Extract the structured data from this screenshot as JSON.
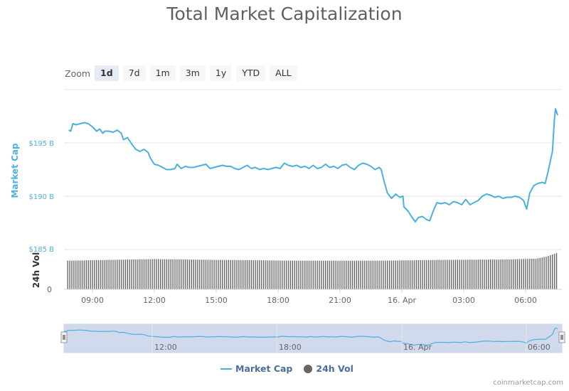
{
  "chart_data": {
    "type": "line",
    "title": "Total Market Capitalization",
    "zoom": {
      "label": "Zoom",
      "buttons": [
        "1d",
        "7d",
        "1m",
        "3m",
        "1y",
        "YTD",
        "ALL"
      ],
      "selected": "1d"
    },
    "y_axis": {
      "label": "Market Cap",
      "ticks": [
        "$185 B",
        "$190 B",
        "$195 B"
      ],
      "ylim": [
        185,
        200
      ]
    },
    "volume_axis": {
      "label": "24h Vol",
      "ticks": [
        "0"
      ]
    },
    "x_ticks": [
      "09:00",
      "12:00",
      "15:00",
      "18:00",
      "21:00",
      "16. Apr",
      "03:00",
      "06:00"
    ],
    "navigator_ticks": [
      "12:00",
      "18:00",
      "16. Apr",
      "06:00"
    ],
    "x_unit": "hours since 09:00",
    "series": [
      {
        "name": "Market Cap",
        "color": "#4cb0de",
        "points": [
          [
            -1.15,
            196.2
          ],
          [
            -1.05,
            196.1
          ],
          [
            -0.95,
            196.8
          ],
          [
            -0.8,
            196.7
          ],
          [
            -0.6,
            196.8
          ],
          [
            -0.4,
            196.9
          ],
          [
            -0.2,
            196.8
          ],
          [
            0.0,
            196.5
          ],
          [
            0.2,
            196.1
          ],
          [
            0.35,
            196.3
          ],
          [
            0.5,
            195.9
          ],
          [
            0.6,
            196.1
          ],
          [
            0.8,
            196.1
          ],
          [
            1.0,
            196.0
          ],
          [
            1.2,
            196.2
          ],
          [
            1.4,
            195.9
          ],
          [
            1.5,
            195.3
          ],
          [
            1.7,
            195.5
          ],
          [
            1.9,
            194.9
          ],
          [
            2.1,
            194.4
          ],
          [
            2.3,
            194.2
          ],
          [
            2.5,
            194.4
          ],
          [
            2.7,
            194.1
          ],
          [
            2.8,
            193.6
          ],
          [
            3.0,
            193.0
          ],
          [
            3.2,
            192.9
          ],
          [
            3.4,
            192.7
          ],
          [
            3.6,
            192.5
          ],
          [
            3.8,
            192.5
          ],
          [
            4.0,
            192.6
          ],
          [
            4.1,
            193.0
          ],
          [
            4.3,
            192.6
          ],
          [
            4.5,
            192.8
          ],
          [
            4.7,
            192.7
          ],
          [
            4.9,
            192.7
          ],
          [
            5.1,
            192.8
          ],
          [
            5.3,
            192.9
          ],
          [
            5.5,
            193.0
          ],
          [
            5.7,
            192.6
          ],
          [
            5.9,
            192.7
          ],
          [
            6.1,
            192.8
          ],
          [
            6.3,
            192.9
          ],
          [
            6.5,
            192.8
          ],
          [
            6.7,
            192.8
          ],
          [
            6.9,
            192.6
          ],
          [
            7.1,
            192.5
          ],
          [
            7.3,
            192.7
          ],
          [
            7.5,
            192.9
          ],
          [
            7.7,
            192.6
          ],
          [
            7.9,
            192.7
          ],
          [
            8.1,
            192.5
          ],
          [
            8.3,
            192.6
          ],
          [
            8.5,
            192.5
          ],
          [
            8.7,
            192.6
          ],
          [
            8.9,
            192.7
          ],
          [
            9.1,
            192.6
          ],
          [
            9.3,
            193.1
          ],
          [
            9.5,
            192.9
          ],
          [
            9.7,
            192.8
          ],
          [
            9.9,
            192.9
          ],
          [
            10.1,
            192.7
          ],
          [
            10.3,
            192.8
          ],
          [
            10.5,
            192.6
          ],
          [
            10.7,
            192.9
          ],
          [
            10.9,
            192.6
          ],
          [
            11.1,
            192.7
          ],
          [
            11.3,
            193.0
          ],
          [
            11.5,
            192.7
          ],
          [
            11.7,
            192.8
          ],
          [
            11.9,
            192.6
          ],
          [
            12.1,
            192.9
          ],
          [
            12.3,
            193.0
          ],
          [
            12.5,
            192.7
          ],
          [
            12.7,
            192.5
          ],
          [
            12.9,
            192.9
          ],
          [
            13.1,
            193.1
          ],
          [
            13.3,
            193.0
          ],
          [
            13.5,
            192.8
          ],
          [
            13.7,
            192.5
          ],
          [
            13.9,
            192.7
          ],
          [
            14.0,
            192.5
          ],
          [
            14.15,
            191.3
          ],
          [
            14.3,
            190.3
          ],
          [
            14.5,
            189.8
          ],
          [
            14.7,
            190.2
          ],
          [
            14.9,
            189.9
          ],
          [
            15.05,
            190.0
          ],
          [
            15.1,
            189.0
          ],
          [
            15.3,
            188.6
          ],
          [
            15.5,
            188.0
          ],
          [
            15.65,
            187.6
          ],
          [
            15.8,
            188.0
          ],
          [
            16.0,
            188.1
          ],
          [
            16.2,
            187.8
          ],
          [
            16.35,
            187.7
          ],
          [
            16.5,
            188.5
          ],
          [
            16.7,
            189.4
          ],
          [
            16.9,
            189.3
          ],
          [
            17.1,
            189.4
          ],
          [
            17.3,
            189.2
          ],
          [
            17.5,
            189.5
          ],
          [
            17.7,
            189.4
          ],
          [
            17.9,
            189.2
          ],
          [
            18.1,
            189.7
          ],
          [
            18.3,
            189.2
          ],
          [
            18.5,
            189.4
          ],
          [
            18.7,
            189.6
          ],
          [
            18.9,
            190.0
          ],
          [
            19.1,
            190.2
          ],
          [
            19.3,
            190.1
          ],
          [
            19.5,
            189.9
          ],
          [
            19.7,
            190.0
          ],
          [
            19.9,
            189.8
          ],
          [
            20.1,
            189.9
          ],
          [
            20.3,
            189.9
          ],
          [
            20.5,
            190.0
          ],
          [
            20.7,
            189.9
          ],
          [
            20.9,
            189.6
          ],
          [
            21.05,
            188.8
          ],
          [
            21.2,
            190.3
          ],
          [
            21.4,
            191.0
          ],
          [
            21.6,
            191.2
          ],
          [
            21.8,
            191.3
          ],
          [
            21.95,
            191.2
          ],
          [
            22.1,
            192.4
          ],
          [
            22.3,
            194.2
          ],
          [
            22.4,
            197.3
          ],
          [
            22.45,
            198.2
          ],
          [
            22.55,
            197.6
          ]
        ]
      },
      {
        "name": "24h Vol",
        "color": "#666666",
        "bar_interval_hours": 0.1,
        "start": -1.2,
        "end": 22.55,
        "levels": [
          [
            -1.2,
            0.72
          ],
          [
            3.0,
            0.76
          ],
          [
            6.0,
            0.74
          ],
          [
            10.0,
            0.72
          ],
          [
            14.0,
            0.72
          ],
          [
            17.0,
            0.74
          ],
          [
            20.0,
            0.75
          ],
          [
            21.5,
            0.77
          ],
          [
            22.0,
            0.82
          ],
          [
            22.55,
            0.92
          ]
        ]
      }
    ]
  },
  "legend": {
    "market_cap": "Market Cap",
    "volume": "24h Vol"
  },
  "credit": "coinmarketcap.com"
}
